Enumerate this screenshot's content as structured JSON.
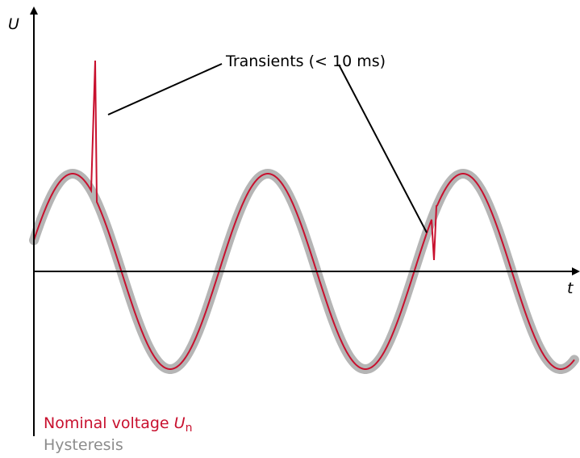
{
  "axes": {
    "y_label": "U",
    "x_label": "t"
  },
  "annotation": "Transients (< 10 ms)",
  "legend": {
    "nominal": {
      "text": "Nominal voltage",
      "symbol": "U",
      "subscript": "n"
    },
    "hysteresis": "Hysteresis"
  }
}
